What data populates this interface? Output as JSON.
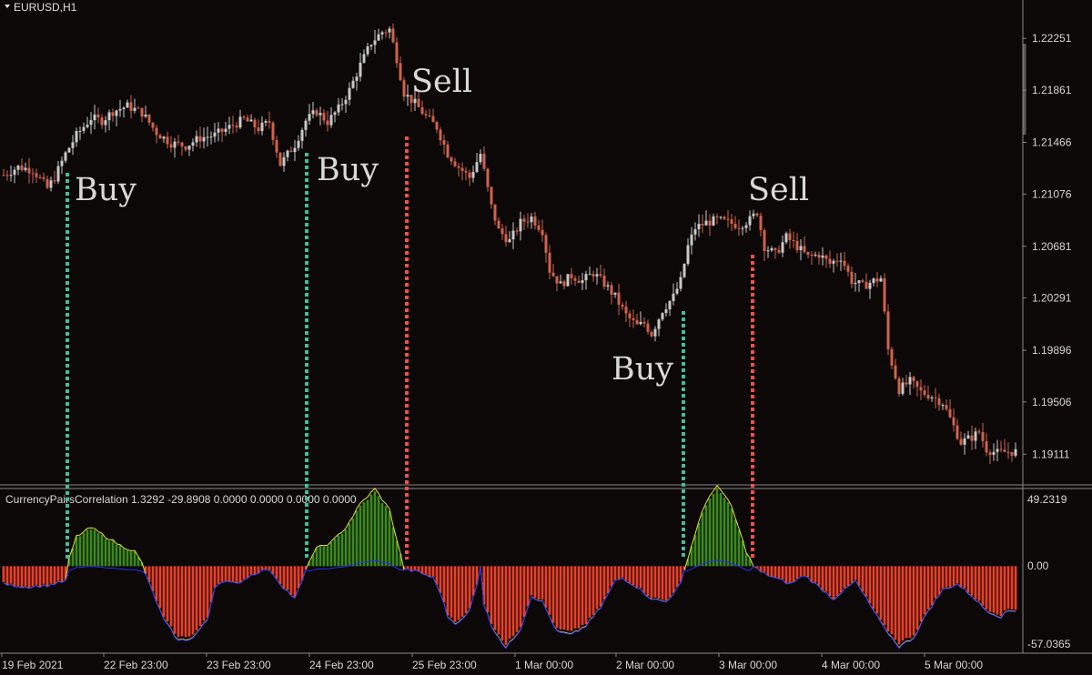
{
  "colors": {
    "background": "#0b0807",
    "bull": "#c8c8c8",
    "bear": "#d0624c",
    "buy": "#3fbf9c",
    "sell": "#f0504a",
    "hist_green": "#3a8a1e",
    "hist_red": "#e8402a",
    "line_yellow": "#e6e23a",
    "line_blue": "#2b2bff",
    "grid": "#8a8a8a"
  },
  "window": {
    "symbol_label": "EURUSD,H1"
  },
  "indicator": {
    "label": "CurrencyPairsCorrelation 1.3292 -29.8908 0.0000 0.0000 0.0000 0.0000",
    "axis_labels": [
      "49.2319",
      "0.00",
      "-57.0365"
    ]
  },
  "chart_data": [
    {
      "type": "candlestick",
      "title": "EURUSD,H1",
      "ylim": [
        1.189,
        1.225
      ],
      "y_ticks": [
        "1.22251",
        "1.21861",
        "1.21466",
        "1.21076",
        "1.20681",
        "1.20291",
        "1.19896",
        "1.19506",
        "1.19111"
      ],
      "x_ticks": [
        "19 Feb 2021",
        "22 Feb 23:00",
        "23 Feb 23:00",
        "24 Feb 23:00",
        "25 Feb 23:00",
        "1 Mar 00:00",
        "2 Mar 00:00",
        "3 Mar 00:00",
        "4 Mar 00:00",
        "5 Mar 00:00"
      ],
      "close_path": [
        [
          0,
          1.2122
        ],
        [
          4,
          1.2128
        ],
        [
          8,
          1.2126
        ],
        [
          12,
          1.2112
        ],
        [
          14,
          1.212
        ],
        [
          17,
          1.2138
        ],
        [
          20,
          1.2152
        ],
        [
          24,
          1.2165
        ],
        [
          27,
          1.2163
        ],
        [
          30,
          1.217
        ],
        [
          34,
          1.2174
        ],
        [
          38,
          1.2169
        ],
        [
          42,
          1.2154
        ],
        [
          46,
          1.2146
        ],
        [
          50,
          1.2144
        ],
        [
          54,
          1.215
        ],
        [
          58,
          1.2152
        ],
        [
          62,
          1.2158
        ],
        [
          66,
          1.2164
        ],
        [
          70,
          1.2157
        ],
        [
          73,
          1.2162
        ],
        [
          76,
          1.213
        ],
        [
          80,
          1.2145
        ],
        [
          83,
          1.2163
        ],
        [
          86,
          1.217
        ],
        [
          89,
          1.2162
        ],
        [
          92,
          1.2172
        ],
        [
          95,
          1.2186
        ],
        [
          98,
          1.2205
        ],
        [
          101,
          1.2222
        ],
        [
          104,
          1.223
        ],
        [
          106,
          1.2232
        ],
        [
          108,
          1.221
        ],
        [
          110,
          1.2184
        ],
        [
          113,
          1.2176
        ],
        [
          116,
          1.2166
        ],
        [
          119,
          1.2158
        ],
        [
          122,
          1.2138
        ],
        [
          125,
          1.2128
        ],
        [
          128,
          1.212
        ],
        [
          131,
          1.2138
        ],
        [
          134,
          1.2098
        ],
        [
          136,
          1.208
        ],
        [
          139,
          1.2072
        ],
        [
          142,
          1.2086
        ],
        [
          145,
          1.209
        ],
        [
          148,
          1.208
        ],
        [
          150,
          1.205
        ],
        [
          153,
          1.2039
        ],
        [
          156,
          1.2046
        ],
        [
          159,
          1.2042
        ],
        [
          162,
          1.2048
        ],
        [
          165,
          1.204
        ],
        [
          168,
          1.203
        ],
        [
          171,
          1.2016
        ],
        [
          174,
          1.2008
        ],
        [
          176,
          1.201
        ],
        [
          178,
          1.2002
        ],
        [
          181,
          1.202
        ],
        [
          184,
          1.203
        ],
        [
          186,
          1.2042
        ],
        [
          188,
          1.2068
        ],
        [
          190,
          1.2082
        ],
        [
          193,
          1.2086
        ],
        [
          196,
          1.2088
        ],
        [
          199,
          1.2086
        ],
        [
          202,
          1.2084
        ],
        [
          205,
          1.2088
        ],
        [
          207,
          1.2094
        ],
        [
          209,
          1.2068
        ],
        [
          212,
          1.2062
        ],
        [
          215,
          1.2075
        ],
        [
          218,
          1.2068
        ],
        [
          221,
          1.206
        ],
        [
          224,
          1.2062
        ],
        [
          227,
          1.2055
        ],
        [
          230,
          1.206
        ],
        [
          233,
          1.2042
        ],
        [
          236,
          1.2038
        ],
        [
          239,
          1.2042
        ],
        [
          241,
          1.2044
        ],
        [
          243,
          1.199
        ],
        [
          246,
          1.196
        ],
        [
          249,
          1.1966
        ],
        [
          252,
          1.1958
        ],
        [
          255,
          1.1955
        ],
        [
          258,
          1.195
        ],
        [
          261,
          1.1932
        ],
        [
          263,
          1.192
        ],
        [
          266,
          1.1924
        ],
        [
          268,
          1.1928
        ],
        [
          270,
          1.1915
        ],
        [
          273,
          1.1912
        ],
        [
          276,
          1.1913
        ]
      ]
    },
    {
      "type": "histogram",
      "title": "CurrencyPairsCorrelation 1.3292 -29.8908 0.0000 0.0000 0.0000 0.0000",
      "ylim": [
        -57.0365,
        49.2319
      ],
      "series": [
        {
          "name": "positive",
          "color": "#3a8a1e"
        },
        {
          "name": "negative",
          "color": "#e8402a"
        }
      ],
      "histogram_path": [
        [
          0,
          -12
        ],
        [
          6,
          -14
        ],
        [
          12,
          -13
        ],
        [
          17,
          -10
        ],
        [
          18,
          5
        ],
        [
          20,
          20
        ],
        [
          24,
          26
        ],
        [
          28,
          20
        ],
        [
          32,
          14
        ],
        [
          36,
          10
        ],
        [
          38,
          2
        ],
        [
          40,
          -12
        ],
        [
          44,
          -36
        ],
        [
          48,
          -50
        ],
        [
          52,
          -48
        ],
        [
          56,
          -36
        ],
        [
          58,
          -14
        ],
        [
          60,
          -10
        ],
        [
          64,
          -12
        ],
        [
          68,
          -6
        ],
        [
          72,
          -2
        ],
        [
          74,
          -5
        ],
        [
          76,
          -12
        ],
        [
          80,
          -22
        ],
        [
          82,
          -10
        ],
        [
          84,
          4
        ],
        [
          86,
          12
        ],
        [
          90,
          16
        ],
        [
          94,
          26
        ],
        [
          98,
          42
        ],
        [
          102,
          52
        ],
        [
          106,
          38
        ],
        [
          109,
          8
        ],
        [
          110,
          -2
        ],
        [
          114,
          -4
        ],
        [
          118,
          -8
        ],
        [
          120,
          -18
        ],
        [
          122,
          -34
        ],
        [
          124,
          -38
        ],
        [
          126,
          -36
        ],
        [
          128,
          -30
        ],
        [
          130,
          -12
        ],
        [
          131,
          0
        ],
        [
          132,
          -26
        ],
        [
          134,
          -40
        ],
        [
          138,
          -55
        ],
        [
          142,
          -42
        ],
        [
          145,
          -20
        ],
        [
          148,
          -24
        ],
        [
          152,
          -44
        ],
        [
          156,
          -46
        ],
        [
          160,
          -40
        ],
        [
          164,
          -28
        ],
        [
          168,
          -10
        ],
        [
          170,
          -8
        ],
        [
          174,
          -14
        ],
        [
          178,
          -22
        ],
        [
          182,
          -24
        ],
        [
          186,
          -12
        ],
        [
          188,
          6
        ],
        [
          192,
          38
        ],
        [
          196,
          55
        ],
        [
          200,
          40
        ],
        [
          204,
          10
        ],
        [
          206,
          0
        ],
        [
          208,
          -4
        ],
        [
          212,
          -8
        ],
        [
          216,
          -12
        ],
        [
          220,
          -6
        ],
        [
          224,
          -14
        ],
        [
          228,
          -22
        ],
        [
          232,
          -14
        ],
        [
          234,
          -10
        ],
        [
          238,
          -26
        ],
        [
          242,
          -42
        ],
        [
          246,
          -54
        ],
        [
          250,
          -48
        ],
        [
          254,
          -30
        ],
        [
          258,
          -16
        ],
        [
          262,
          -12
        ],
        [
          266,
          -20
        ],
        [
          270,
          -30
        ],
        [
          274,
          -34
        ],
        [
          276,
          -30
        ]
      ]
    }
  ],
  "signals": [
    {
      "label": "Buy",
      "type": "buy"
    },
    {
      "label": "Buy",
      "type": "buy"
    },
    {
      "label": "Sell",
      "type": "sell"
    },
    {
      "label": "Buy",
      "type": "buy"
    },
    {
      "label": "Sell",
      "type": "sell"
    }
  ]
}
